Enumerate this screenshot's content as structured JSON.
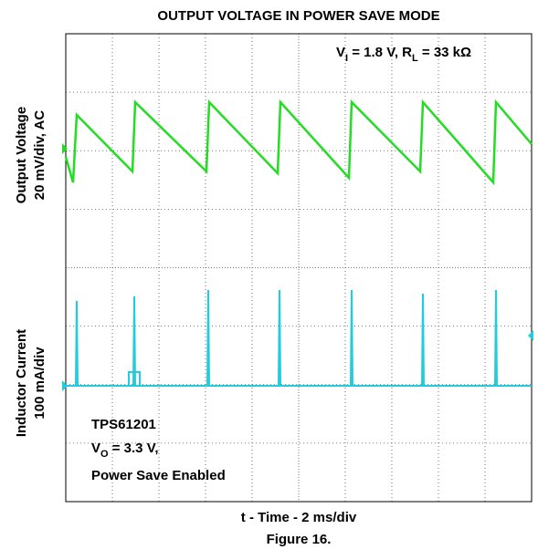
{
  "chart_data": {
    "type": "line",
    "title": "OUTPUT VOLTAGE IN POWER SAVE MODE",
    "xlabel": "t - Time - 2 ms/div",
    "ylabel_top": [
      "Output Voltage",
      "20 mV/div, AC"
    ],
    "ylabel_bottom": [
      "Inductor Current",
      "100 mA/div"
    ],
    "caption": "Figure 16.",
    "conditions": [
      "V",
      "I",
      " = 1.8 V, R",
      "L",
      " = 33 kΩ"
    ],
    "device": "TPS61201",
    "output": [
      "V",
      "O",
      " = 3.3 V,"
    ],
    "mode": "Power Save Enabled"
  }
}
